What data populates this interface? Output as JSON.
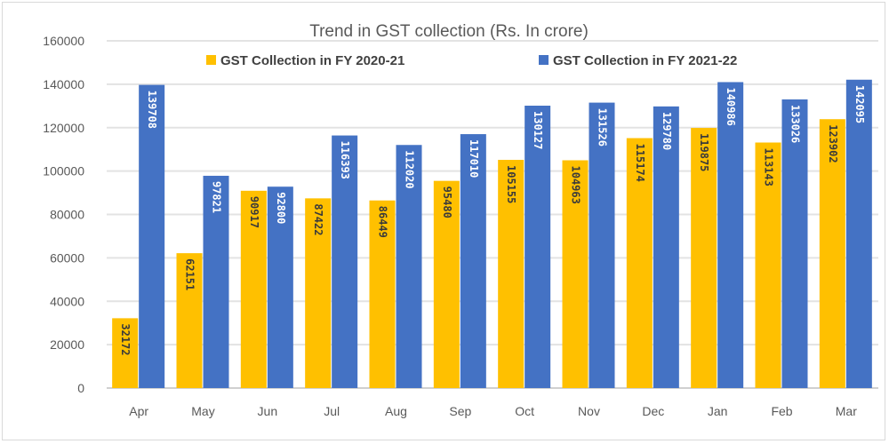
{
  "chart_data": {
    "type": "bar",
    "title": "Trend in GST collection (Rs. In crore)",
    "xlabel": "",
    "ylabel": "",
    "ylim": [
      0,
      160000
    ],
    "yticks": [
      0,
      20000,
      40000,
      60000,
      80000,
      100000,
      120000,
      140000,
      160000
    ],
    "grid": true,
    "legend_position": "top",
    "categories": [
      "Apr",
      "May",
      "Jun",
      "Jul",
      "Aug",
      "Sep",
      "Oct",
      "Nov",
      "Dec",
      "Jan",
      "Feb",
      "Mar"
    ],
    "series": [
      {
        "name": "GST Collection in FY 2020-21",
        "color": "#FFC000",
        "values": [
          32172,
          62151,
          90917,
          87422,
          86449,
          95480,
          105155,
          104963,
          115174,
          119875,
          113143,
          123902
        ]
      },
      {
        "name": "GST Collection in FY 2021-22",
        "color": "#4472C4",
        "values": [
          139708,
          97821,
          92800,
          116393,
          112020,
          117010,
          130127,
          131526,
          129780,
          140986,
          133026,
          142095
        ]
      }
    ]
  }
}
